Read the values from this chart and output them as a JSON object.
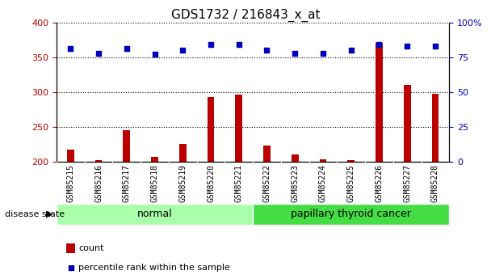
{
  "title": "GDS1732 / 216843_x_at",
  "samples": [
    "GSM85215",
    "GSM85216",
    "GSM85217",
    "GSM85218",
    "GSM85219",
    "GSM85220",
    "GSM85221",
    "GSM85222",
    "GSM85223",
    "GSM85224",
    "GSM85225",
    "GSM85226",
    "GSM85227",
    "GSM85228"
  ],
  "counts": [
    218,
    203,
    245,
    207,
    226,
    293,
    296,
    223,
    210,
    204,
    202,
    370,
    310,
    298
  ],
  "percentiles": [
    81,
    78,
    81,
    77,
    80,
    84,
    84,
    80,
    78,
    78,
    80,
    84,
    83,
    83
  ],
  "ymin": 200,
  "ymax": 400,
  "y_left_ticks": [
    200,
    250,
    300,
    350,
    400
  ],
  "y_right_ticks": [
    0,
    25,
    50,
    75,
    100
  ],
  "y_right_ticklabels": [
    "0",
    "25",
    "50",
    "75",
    "100%"
  ],
  "groups": [
    {
      "label": "normal",
      "start": 0,
      "end": 7,
      "color": "#aaffaa"
    },
    {
      "label": "papillary thyroid cancer",
      "start": 7,
      "end": 14,
      "color": "#44dd44"
    }
  ],
  "bar_color": "#bb0000",
  "dot_color": "#0000bb",
  "bar_width": 0.25,
  "dot_size": 16,
  "grid_linestyle": "dotted",
  "grid_color": "#000000",
  "grid_linewidth": 0.8,
  "left_tick_color": "#bb0000",
  "right_tick_color": "#0000bb",
  "label_fontsize": 8,
  "sample_fontsize": 7,
  "group_label_fontsize": 9,
  "title_fontsize": 11,
  "disease_state_label": "disease state",
  "legend_count_label": "count",
  "legend_pct_label": "percentile rank within the sample"
}
